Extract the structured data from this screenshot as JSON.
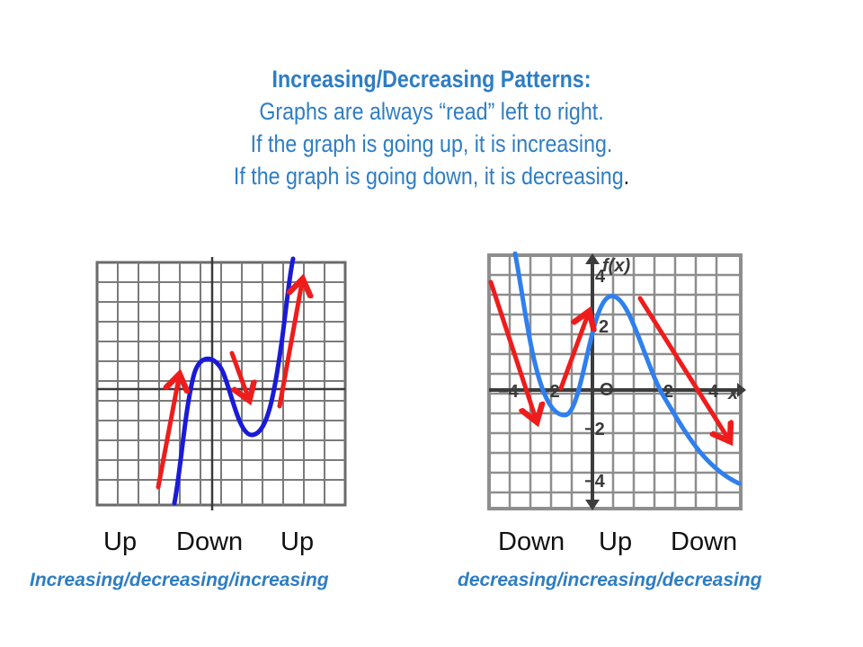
{
  "title": {
    "heading": "Increasing/Decreasing Patterns:",
    "line1": "Graphs are always “read” left to right.",
    "line2": "If the graph is going up, it is increasing.",
    "line3": "If the graph is going down, it is decreasing",
    "line3_end": "."
  },
  "left_graph": {
    "words": [
      "Up",
      "Down",
      "Up"
    ],
    "summary": "Increasing/decreasing/increasing"
  },
  "right_graph": {
    "words": [
      "Down",
      "Up",
      "Down"
    ],
    "summary": "decreasing/increasing/decreasing",
    "fx_label": "f(x)",
    "x_label": "x",
    "origin_label": "O",
    "tick_labels": {
      "x": [
        "−4",
        "−2",
        "2",
        "4"
      ],
      "y": [
        "4",
        "2",
        "−2",
        "−4"
      ]
    }
  },
  "colors": {
    "heading_blue": "#2e7dc4",
    "arrow_red": "#ef1c1c",
    "left_curve": "#1a1ad8",
    "right_curve": "#2f7fee"
  }
}
